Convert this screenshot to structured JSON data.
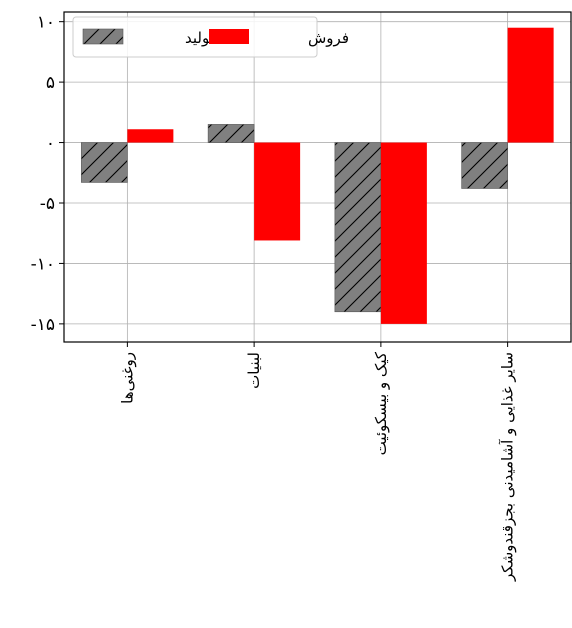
{
  "chart_data": {
    "type": "bar",
    "categories": [
      "روغنی‌ها",
      "لبنیات",
      "کیک و بیسکوئیت",
      "سایر غذایی و آشامیدنی بجزقندوشکر"
    ],
    "series": [
      {
        "name": "تولید",
        "values": [
          -3.3,
          1.5,
          -14.0,
          -3.8
        ],
        "color": "#808080",
        "pattern": "hatch"
      },
      {
        "name": "فروش",
        "values": [
          1.1,
          -8.1,
          -15.0,
          9.5
        ],
        "color": "#ff0000",
        "pattern": "solid"
      }
    ],
    "yticks": [
      10,
      5,
      0,
      -5,
      -10,
      -15
    ],
    "ytick_labels": [
      "۱۰",
      "۵",
      "۰",
      "-۵",
      "-۱۰",
      "-۱۵"
    ],
    "ylim": [
      -16.5,
      10.8
    ],
    "grid": true,
    "legend_position": "top-left",
    "title": "",
    "xlabel": "",
    "ylabel": ""
  }
}
